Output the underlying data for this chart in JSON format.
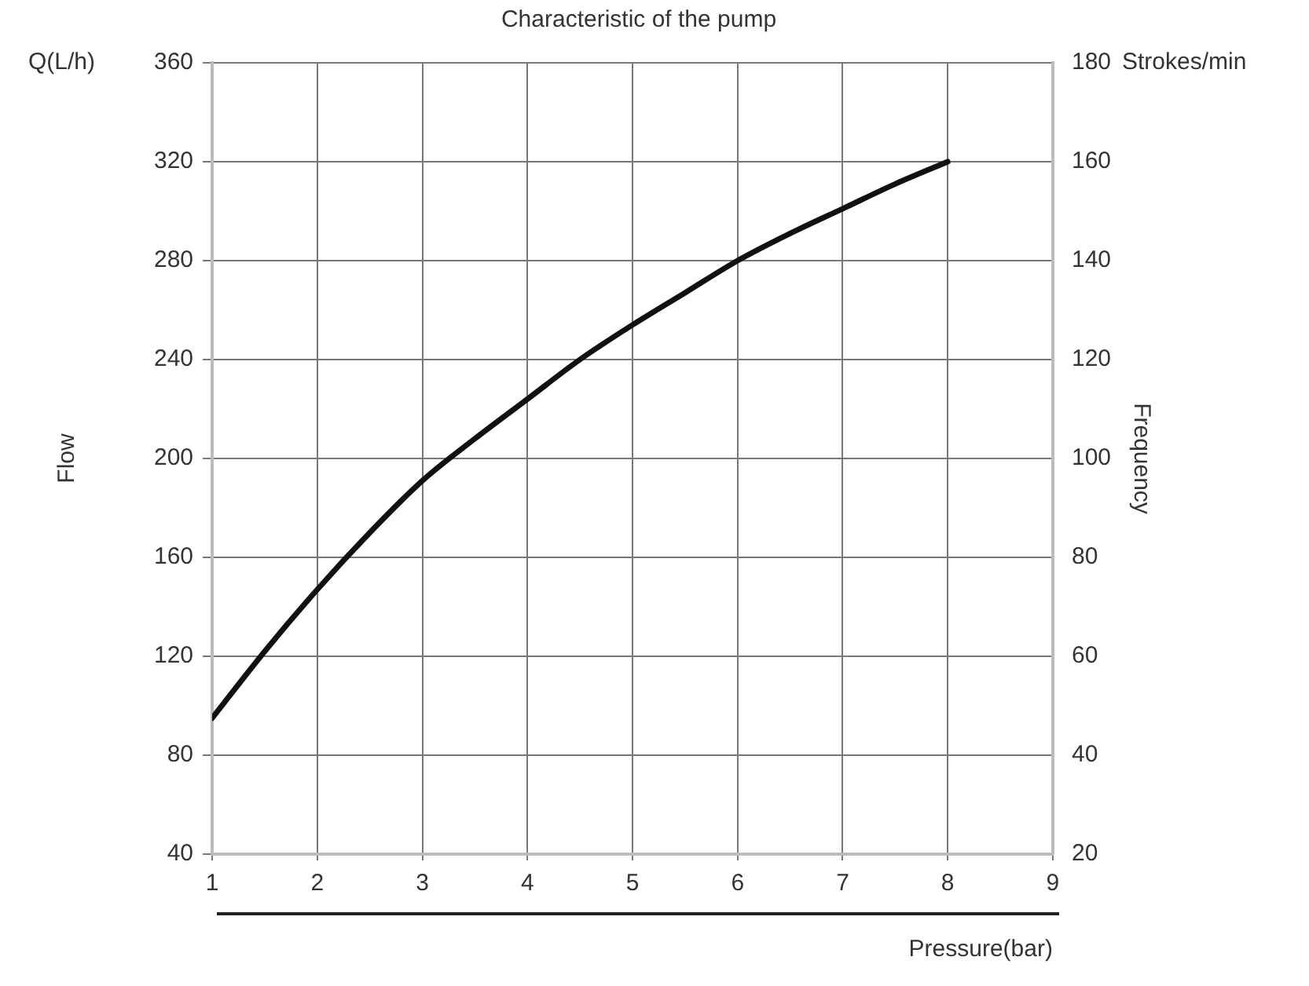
{
  "chart_data": {
    "type": "line",
    "title": "Characteristic of the pump",
    "xlabel": "Pressure(bar)",
    "ylabel": "Flow",
    "y2label": "Frequency",
    "annotations": [
      "Q(L/h)",
      "Strokes/min"
    ],
    "x": [
      1,
      1.5,
      2,
      2.5,
      3,
      3.5,
      4,
      4.5,
      5,
      5.5,
      6,
      6.5,
      7,
      7.5,
      8
    ],
    "series": [
      {
        "color": "#111111",
        "values": [
          95,
          122,
          147,
          170,
          191,
          208,
          224,
          240,
          254,
          267,
          280,
          291,
          301,
          311,
          320
        ]
      }
    ],
    "xlim": [
      1,
      9
    ],
    "xticks": [
      1,
      2,
      3,
      4,
      5,
      6,
      7,
      8,
      9
    ],
    "ylim": [
      40,
      360
    ],
    "yticks": [
      40,
      80,
      120,
      160,
      200,
      240,
      280,
      320,
      360
    ],
    "y2lim": [
      20,
      180
    ],
    "y2ticks": [
      20,
      40,
      60,
      80,
      100,
      120,
      140,
      160,
      180
    ],
    "grid": true,
    "legend": false,
    "marker": "none",
    "line_style": "solid"
  }
}
